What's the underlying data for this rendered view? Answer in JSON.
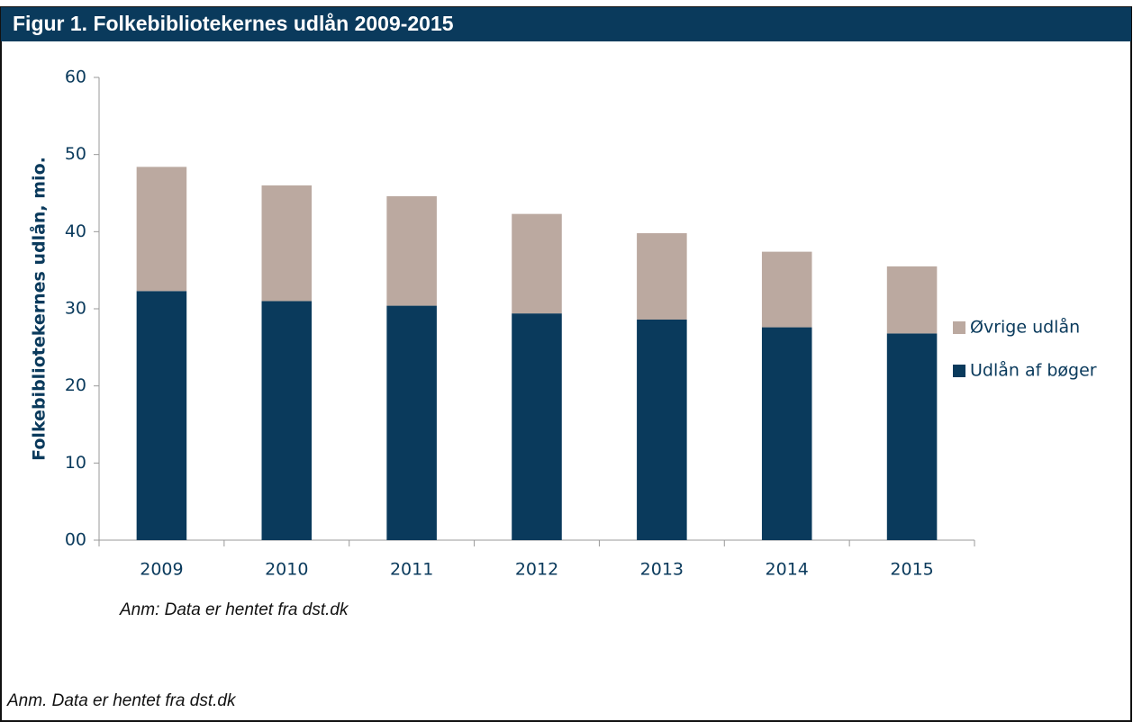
{
  "chart_data": {
    "type": "stacked_bar",
    "title": "Figur 1. Folkebibliotekernes udlån 2009-2015",
    "y_label": "Folkebibliotekernes udlån, mio.",
    "note": "Anm: Data er hentet fra dst.dk",
    "footnote": "Anm.  Data er hentet fra dst.dk",
    "categories": [
      "2009",
      "2010",
      "2011",
      "2012",
      "2013",
      "2014",
      "2015"
    ],
    "series": [
      {
        "name": "Udlån af bøger",
        "color": "#0a3a5c",
        "values": [
          32.3,
          31.0,
          30.4,
          29.4,
          28.6,
          27.6,
          26.8
        ]
      },
      {
        "name": "Øvrige udlån",
        "color": "#bba9a0",
        "values": [
          16.1,
          15.0,
          14.2,
          12.9,
          11.2,
          9.8,
          8.7
        ]
      }
    ],
    "ylim": [
      0,
      60
    ],
    "yticks": [
      {
        "value": 0,
        "label": "00"
      },
      10,
      20,
      30,
      40,
      50,
      60
    ],
    "legend": "right"
  }
}
